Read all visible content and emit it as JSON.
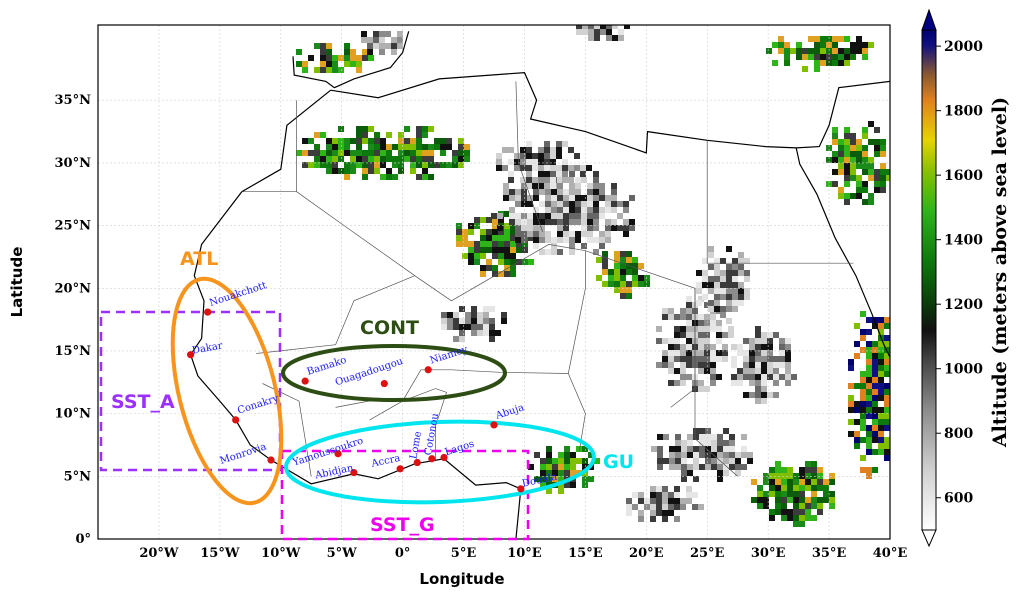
{
  "axes": {
    "xlabel": "Longitude",
    "ylabel": "Latitude",
    "xticks": [
      "20°W",
      "15°W",
      "10°W",
      "5°W",
      "0°",
      "5°E",
      "10°E",
      "15°E",
      "20°E",
      "25°E",
      "30°E",
      "35°E",
      "40°E"
    ],
    "yticks": [
      "0°",
      "5°N",
      "10°N",
      "15°N",
      "20°N",
      "25°N",
      "30°N",
      "35°N"
    ],
    "xlim": [
      -25,
      40
    ],
    "ylim": [
      0,
      41
    ]
  },
  "colorbar": {
    "title": "Altitude (meters above sea level)",
    "ticks": [
      "600",
      "800",
      "1000",
      "1200",
      "1400",
      "1600",
      "1800",
      "2000"
    ],
    "range": [
      500,
      2050
    ]
  },
  "regions": {
    "atl": {
      "label": "ATL",
      "color": "#f7941d"
    },
    "cont": {
      "label": "CONT",
      "color": "#2e4d14"
    },
    "gu": {
      "label": "GU",
      "color": "#00e5ee"
    },
    "sst_a": {
      "label": "SST_A",
      "color": "#9b30ff"
    },
    "sst_g": {
      "label": "SST_G",
      "color": "#ee00ee"
    }
  },
  "cities": [
    {
      "name": "Nouakchott",
      "lon": -16.0,
      "lat": 18.1
    },
    {
      "name": "Dakar",
      "lon": -17.4,
      "lat": 14.7
    },
    {
      "name": "Conakry",
      "lon": -13.7,
      "lat": 9.5
    },
    {
      "name": "Monrovia",
      "lon": -10.8,
      "lat": 6.3
    },
    {
      "name": "Bamako",
      "lon": -8.0,
      "lat": 12.6
    },
    {
      "name": "Ouagadougou",
      "lon": -1.5,
      "lat": 12.4
    },
    {
      "name": "Niamey",
      "lon": 2.1,
      "lat": 13.5
    },
    {
      "name": "Yamoussoukro",
      "lon": -5.3,
      "lat": 6.8
    },
    {
      "name": "Abidjan",
      "lon": -4.0,
      "lat": 5.3
    },
    {
      "name": "Accra",
      "lon": -0.2,
      "lat": 5.6
    },
    {
      "name": "Lome",
      "lon": 1.2,
      "lat": 6.1
    },
    {
      "name": "Cotonou",
      "lon": 2.4,
      "lat": 6.4
    },
    {
      "name": "Lagos",
      "lon": 3.4,
      "lat": 6.5
    },
    {
      "name": "Abuja",
      "lon": 7.5,
      "lat": 9.1
    },
    {
      "name": "Douala",
      "lon": 9.7,
      "lat": 4.0
    }
  ],
  "colors": {
    "city_dot": "#dd1111",
    "city_label": "#1a1aff"
  }
}
